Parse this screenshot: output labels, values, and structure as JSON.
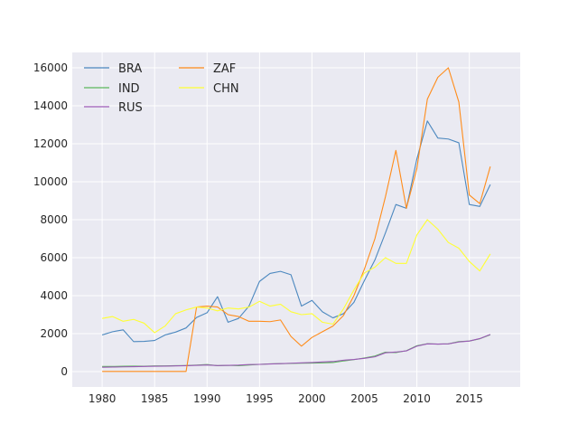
{
  "chart_data": {
    "type": "line",
    "title": "",
    "xlabel": "",
    "ylabel": "",
    "xlim": [
      1977.15,
      2019.85
    ],
    "ylim": [
      -810,
      16810
    ],
    "grid": true,
    "legend_position": "top-left",
    "legend_columns": 2,
    "x_ticks": [
      1980,
      1985,
      1990,
      1995,
      2000,
      2005,
      2010,
      2015
    ],
    "y_ticks": [
      0,
      2000,
      4000,
      6000,
      8000,
      10000,
      12000,
      14000,
      16000
    ],
    "x": [
      1980,
      1981,
      1982,
      1983,
      1984,
      1985,
      1986,
      1987,
      1988,
      1989,
      1990,
      1991,
      1992,
      1993,
      1994,
      1995,
      1996,
      1997,
      1998,
      1999,
      2000,
      2001,
      2002,
      2003,
      2004,
      2005,
      2006,
      2007,
      2008,
      2009,
      2010,
      2011,
      2012,
      2013,
      2014,
      2015,
      2016,
      2017
    ],
    "series": [
      {
        "name": "BRA",
        "color": "#4c88bf",
        "values": [
          1930,
          2100,
          2200,
          1580,
          1590,
          1640,
          1930,
          2080,
          2300,
          2850,
          3100,
          3950,
          2600,
          2800,
          3450,
          4750,
          5170,
          5280,
          5100,
          3450,
          3750,
          3150,
          2830,
          3050,
          3650,
          4800,
          5880,
          7300,
          8800,
          8600,
          11200,
          13200,
          12300,
          12250,
          12050,
          8800,
          8700,
          9850
        ]
      },
      {
        "name": "IND",
        "color": "#5cb85c",
        "values": [
          270,
          270,
          280,
          290,
          280,
          300,
          300,
          310,
          320,
          340,
          370,
          310,
          330,
          310,
          350,
          380,
          410,
          420,
          430,
          440,
          450,
          460,
          480,
          560,
          630,
          720,
          820,
          1020,
          1000,
          1100,
          1360,
          1470,
          1450,
          1460,
          1580,
          1610,
          1730,
          1940
        ]
      },
      {
        "name": "RUS",
        "color": "#9b59b6",
        "values": [
          230,
          240,
          250,
          260,
          270,
          280,
          290,
          300,
          310,
          330,
          350,
          320,
          330,
          340,
          370,
          380,
          400,
          420,
          440,
          460,
          480,
          510,
          530,
          600,
          640,
          700,
          780,
          990,
          1030,
          1090,
          1340,
          1460,
          1450,
          1460,
          1560,
          1610,
          1740,
          1960
        ]
      },
      {
        "name": "ZAF",
        "color": "#ff8c1a",
        "values": [
          10,
          10,
          10,
          10,
          10,
          10,
          10,
          10,
          10,
          3400,
          3450,
          3400,
          3000,
          2900,
          2650,
          2650,
          2630,
          2720,
          1850,
          1340,
          1800,
          2100,
          2400,
          2950,
          4000,
          5400,
          7000,
          9200,
          11650,
          8600,
          10700,
          14350,
          15500,
          16000,
          14200,
          9300,
          8850,
          10800
        ]
      },
      {
        "name": "CHN",
        "color": "#ffff33",
        "values": [
          2800,
          2900,
          2650,
          2750,
          2550,
          2050,
          2400,
          3050,
          3250,
          3400,
          3350,
          3200,
          3350,
          3300,
          3400,
          3700,
          3450,
          3550,
          3150,
          3000,
          3050,
          2600,
          2500,
          3300,
          4300,
          5200,
          5500,
          6000,
          5700,
          5700,
          7200,
          8000,
          7500,
          6800,
          6500,
          5800,
          5300,
          6200
        ]
      }
    ]
  }
}
